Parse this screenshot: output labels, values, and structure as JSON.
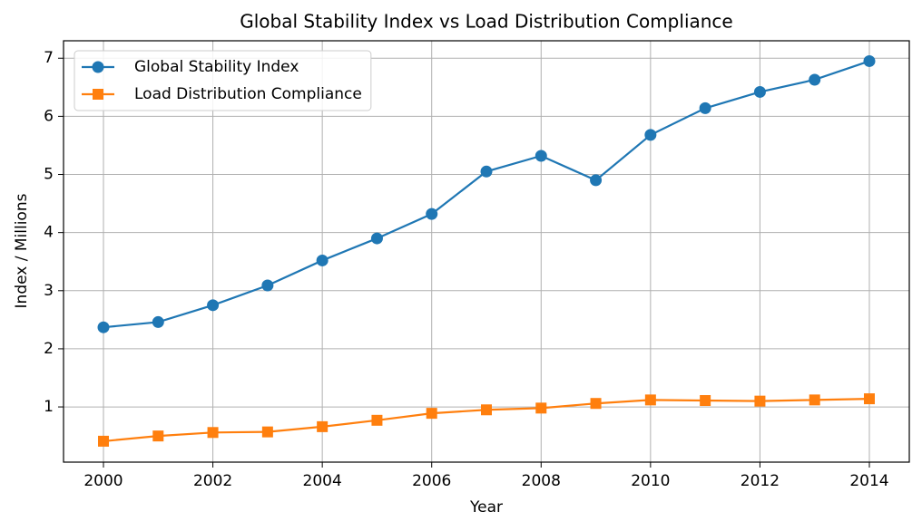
{
  "chart_data": {
    "type": "line",
    "title": "Global Stability Index vs Load Distribution Compliance",
    "x_label": "Year",
    "y_label": "Index / Millions",
    "x": [
      2000,
      2001,
      2002,
      2003,
      2004,
      2005,
      2006,
      2007,
      2008,
      2009,
      2010,
      2011,
      2012,
      2013,
      2014
    ],
    "series": [
      {
        "name": "Global Stability Index",
        "color": "#1f77b4",
        "marker": "circle",
        "values": [
          2.37,
          2.46,
          2.75,
          3.09,
          3.52,
          3.9,
          4.32,
          5.05,
          5.32,
          4.9,
          5.68,
          6.14,
          6.42,
          6.63,
          6.95
        ]
      },
      {
        "name": "Load Distribution Compliance",
        "color": "#ff7f0e",
        "marker": "square",
        "values": [
          0.41,
          0.5,
          0.56,
          0.57,
          0.66,
          0.77,
          0.89,
          0.95,
          0.98,
          1.06,
          1.12,
          1.11,
          1.1,
          1.12,
          1.14
        ]
      }
    ],
    "xlim": [
      1999.27,
      2014.73
    ],
    "xticks": [
      2000,
      2002,
      2004,
      2006,
      2008,
      2010,
      2012,
      2014
    ],
    "ylim": [
      0.05,
      7.3
    ],
    "yticks": [
      1,
      2,
      3,
      4,
      5,
      6,
      7
    ],
    "grid": true,
    "legend": "upper-left"
  }
}
